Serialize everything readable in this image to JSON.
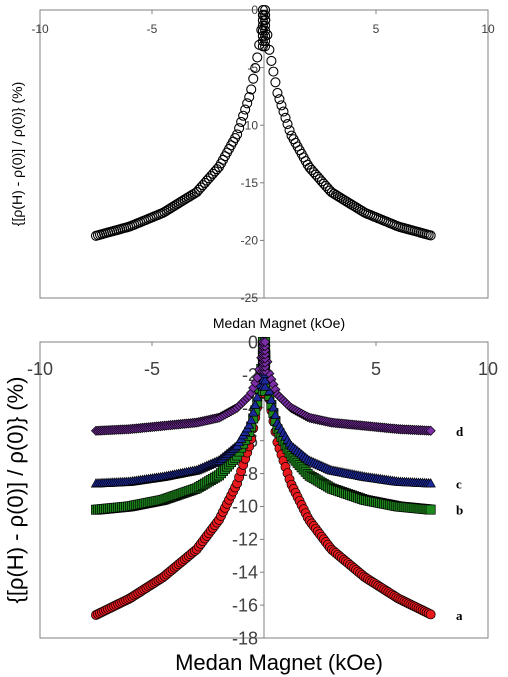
{
  "chart_data": [
    {
      "type": "scatter",
      "title": "",
      "xlabel": "Medan Magnet (kOe)",
      "ylabel": "{[ρ(H) - ρ(0)] / ρ(0)} (%)",
      "xlim": [
        -10,
        10
      ],
      "ylim": [
        -25,
        0
      ],
      "x_ticks": [
        "-10",
        "-5",
        "5",
        "10"
      ],
      "y_ticks": [
        "0",
        "-5",
        "-10",
        "-15",
        "-20",
        "-25"
      ],
      "x_axis_position": "top",
      "grid": false,
      "marker": "open-circle",
      "series": [
        {
          "name": "",
          "color": "#000000",
          "points": [
            [
              -7.5,
              -19.6
            ],
            [
              -6,
              -18.8
            ],
            [
              -4.5,
              -17.6
            ],
            [
              -3,
              -15.8
            ],
            [
              -2,
              -13.6
            ],
            [
              -1.2,
              -10.8
            ],
            [
              -0.6,
              -7.2
            ],
            [
              -0.25,
              -3.6
            ],
            [
              0,
              0
            ],
            [
              0.25,
              -3.6
            ],
            [
              0.6,
              -7.2
            ],
            [
              1.2,
              -10.8
            ],
            [
              2,
              -13.6
            ],
            [
              3,
              -15.8
            ],
            [
              4.5,
              -17.6
            ],
            [
              6,
              -18.8
            ],
            [
              7.5,
              -19.6
            ]
          ]
        }
      ]
    },
    {
      "type": "scatter",
      "title": "",
      "xlabel": "Medan Magnet (kOe)",
      "ylabel": "{[ρ(H) - ρ(0)] / ρ(0)} (%)",
      "xlim": [
        -10,
        10
      ],
      "ylim": [
        -18,
        0
      ],
      "x_ticks": [
        "-10",
        "-5",
        "5",
        "10"
      ],
      "y_ticks": [
        "0",
        "-2",
        "-4",
        "-6",
        "-8",
        "-10",
        "-12",
        "-14",
        "-16",
        "-18"
      ],
      "x_axis_position": "top",
      "grid": false,
      "curve_labels": [
        "d",
        "c",
        "b",
        "a"
      ],
      "series": [
        {
          "name": "a",
          "color": "#e8191c",
          "marker": "circle",
          "points": [
            [
              -7.5,
              -16.6
            ],
            [
              -6,
              -15.6
            ],
            [
              -4.5,
              -14.3
            ],
            [
              -3,
              -12.6
            ],
            [
              -2,
              -10.8
            ],
            [
              -1.2,
              -8.6
            ],
            [
              -0.6,
              -6.1
            ],
            [
              -0.25,
              -3.6
            ],
            [
              0,
              0
            ],
            [
              0.25,
              -3.6
            ],
            [
              0.6,
              -6.1
            ],
            [
              1.2,
              -8.6
            ],
            [
              2,
              -10.8
            ],
            [
              3,
              -12.6
            ],
            [
              4.5,
              -14.3
            ],
            [
              6,
              -15.6
            ],
            [
              7.5,
              -16.6
            ]
          ]
        },
        {
          "name": "b",
          "color": "#1e8a1e",
          "marker": "square",
          "points": [
            [
              -7.5,
              -10.2
            ],
            [
              -6,
              -10.0
            ],
            [
              -4.5,
              -9.6
            ],
            [
              -3,
              -8.9
            ],
            [
              -2,
              -8.1
            ],
            [
              -1.2,
              -6.9
            ],
            [
              -0.6,
              -5.3
            ],
            [
              -0.25,
              -3.4
            ],
            [
              0,
              0
            ],
            [
              0.25,
              -3.4
            ],
            [
              0.6,
              -5.3
            ],
            [
              1.2,
              -6.9
            ],
            [
              2,
              -8.1
            ],
            [
              3,
              -8.9
            ],
            [
              4.5,
              -9.6
            ],
            [
              6,
              -10.0
            ],
            [
              7.5,
              -10.2
            ]
          ]
        },
        {
          "name": "c",
          "color": "#1d2a9c",
          "marker": "triangle",
          "points": [
            [
              -7.5,
              -8.6
            ],
            [
              -6,
              -8.5
            ],
            [
              -4.5,
              -8.2
            ],
            [
              -3,
              -7.8
            ],
            [
              -2,
              -7.2
            ],
            [
              -1.2,
              -6.3
            ],
            [
              -0.6,
              -4.9
            ],
            [
              -0.25,
              -3.1
            ],
            [
              0,
              0
            ],
            [
              0.25,
              -3.1
            ],
            [
              0.6,
              -4.9
            ],
            [
              1.2,
              -6.3
            ],
            [
              2,
              -7.2
            ],
            [
              3,
              -7.8
            ],
            [
              4.5,
              -8.2
            ],
            [
              6,
              -8.5
            ],
            [
              7.5,
              -8.6
            ]
          ]
        },
        {
          "name": "d",
          "color": "#7b2ea6",
          "marker": "diamond",
          "points": [
            [
              -7.5,
              -5.4
            ],
            [
              -6,
              -5.3
            ],
            [
              -4.5,
              -5.1
            ],
            [
              -3,
              -4.9
            ],
            [
              -2,
              -4.6
            ],
            [
              -1.2,
              -4.0
            ],
            [
              -0.6,
              -3.2
            ],
            [
              -0.25,
              -2.0
            ],
            [
              0,
              0
            ],
            [
              0.25,
              -2.0
            ],
            [
              0.6,
              -3.2
            ],
            [
              1.2,
              -4.0
            ],
            [
              2,
              -4.6
            ],
            [
              3,
              -4.9
            ],
            [
              4.5,
              -5.1
            ],
            [
              6,
              -5.3
            ],
            [
              7.5,
              -5.4
            ]
          ]
        }
      ]
    }
  ]
}
